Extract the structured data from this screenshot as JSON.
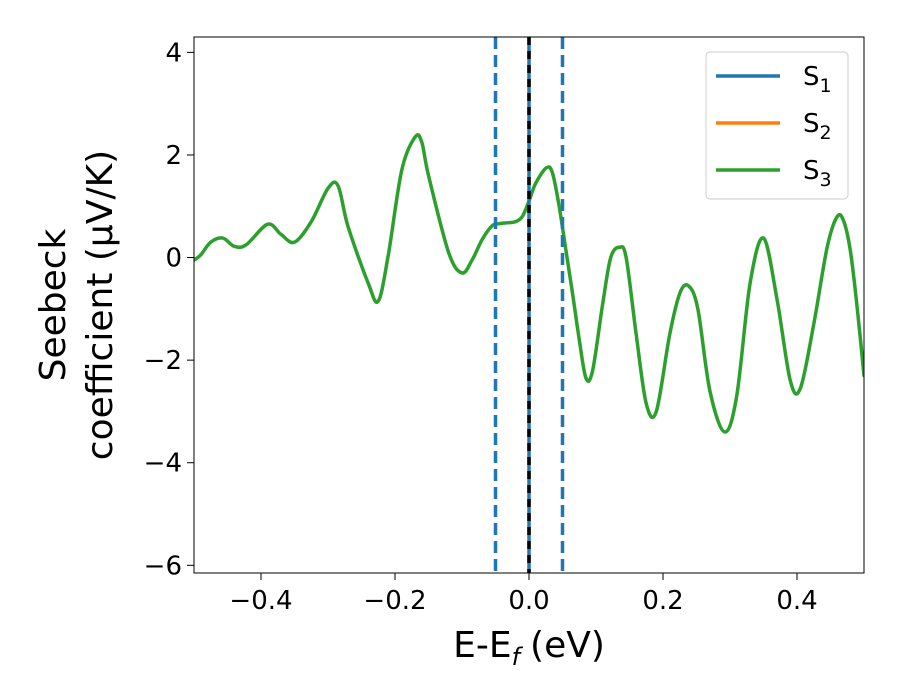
{
  "chart_data": {
    "type": "line",
    "xlabel": "E-E",
    "xlabel_sub": "f",
    "xlabel_unit": "(eV)",
    "ylabel_line1": "Seebeck",
    "ylabel_line2": "coefficient  (μV/K)",
    "xlim": [
      -0.5,
      0.5
    ],
    "ylim": [
      -6.15,
      4.3
    ],
    "xticks": [
      -0.4,
      -0.2,
      0.0,
      0.2,
      0.4
    ],
    "xtick_labels": [
      "−0.4",
      "−0.2",
      "0.0",
      "0.2",
      "0.4"
    ],
    "yticks": [
      -6,
      -4,
      -2,
      0,
      2,
      4
    ],
    "ytick_labels": [
      "−6",
      "−4",
      "−2",
      "0",
      "2",
      "4"
    ],
    "grid": false,
    "legend_position": "top-right",
    "vlines": [
      {
        "x": -0.05,
        "style": "dashed",
        "color": "#1f77b4"
      },
      {
        "x": 0.05,
        "style": "dashed",
        "color": "#1f77b4"
      },
      {
        "x": 0.0,
        "style": "solid",
        "color": "#1f77b4"
      },
      {
        "x": 0.0,
        "style": "dashed",
        "color": "#000000"
      }
    ],
    "series": [
      {
        "name": "S",
        "sub": "1",
        "color": "#1f77b4",
        "x": [],
        "y": []
      },
      {
        "name": "S",
        "sub": "2",
        "color": "#ff7f0e",
        "x": [],
        "y": []
      },
      {
        "name": "S",
        "sub": "3",
        "color": "#2ca02c",
        "x": [
          -0.5,
          -0.49,
          -0.475,
          -0.457,
          -0.44,
          -0.422,
          -0.39,
          -0.37,
          -0.35,
          -0.325,
          -0.3,
          -0.285,
          -0.27,
          -0.24,
          -0.225,
          -0.21,
          -0.19,
          -0.17,
          -0.16,
          -0.15,
          -0.12,
          -0.1,
          -0.085,
          -0.07,
          -0.055,
          -0.045,
          -0.03,
          -0.02,
          -0.01,
          0.0,
          0.01,
          0.026,
          0.035,
          0.045,
          0.055,
          0.065,
          0.075,
          0.085,
          0.095,
          0.11,
          0.122,
          0.135,
          0.145,
          0.16,
          0.175,
          0.19,
          0.21,
          0.225,
          0.238,
          0.252,
          0.27,
          0.292,
          0.31,
          0.33,
          0.35,
          0.37,
          0.39,
          0.405,
          0.425,
          0.445,
          0.46,
          0.47,
          0.48,
          0.49,
          0.5
        ],
        "y": [
          -0.05,
          0.05,
          0.3,
          0.38,
          0.22,
          0.25,
          0.65,
          0.45,
          0.3,
          0.7,
          1.35,
          1.4,
          0.6,
          -0.5,
          -0.85,
          0.05,
          1.7,
          2.35,
          2.25,
          1.6,
          0.1,
          -0.3,
          -0.05,
          0.35,
          0.62,
          0.66,
          0.68,
          0.7,
          0.8,
          1.1,
          1.45,
          1.75,
          1.65,
          1.0,
          0.15,
          -0.7,
          -1.6,
          -2.35,
          -2.2,
          -0.9,
          0.0,
          0.2,
          0.0,
          -1.5,
          -2.85,
          -3.0,
          -1.5,
          -0.7,
          -0.55,
          -1.0,
          -2.6,
          -3.4,
          -2.7,
          -0.5,
          0.38,
          -0.8,
          -2.4,
          -2.55,
          -1.3,
          0.2,
          0.8,
          0.7,
          0.1,
          -1.0,
          -2.3
        ]
      }
    ]
  }
}
